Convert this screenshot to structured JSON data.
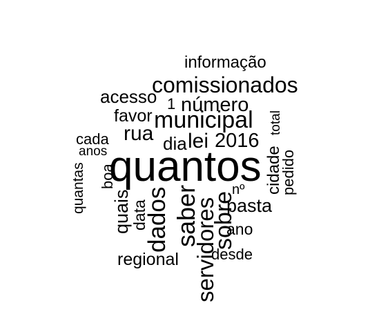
{
  "words": {
    "quantos": "quantos",
    "comissionados": "comissionados",
    "municipal": "municipal",
    "informacao": "informação",
    "acesso": "acesso",
    "numero": "número",
    "one": "1",
    "favor": "favor",
    "rua": "rua",
    "lei": "lei",
    "y2016": "2016",
    "dia": "dia",
    "cada": "cada",
    "anos": "anos",
    "total": "total",
    "pedido": "pedido",
    "cidade": "cidade",
    "quantas": "quantas",
    "boa": "boa",
    "quais": "quais",
    "data": "data",
    "dados": "dados",
    "saber": "saber",
    "servidores": "servidores",
    "sobre": "sobre",
    "no": "nº",
    "pasta": "pasta",
    "ano": "ano",
    "regional": "regional",
    "desde": "desde"
  },
  "colors": {
    "text": "#000000",
    "background": "#ffffff"
  }
}
